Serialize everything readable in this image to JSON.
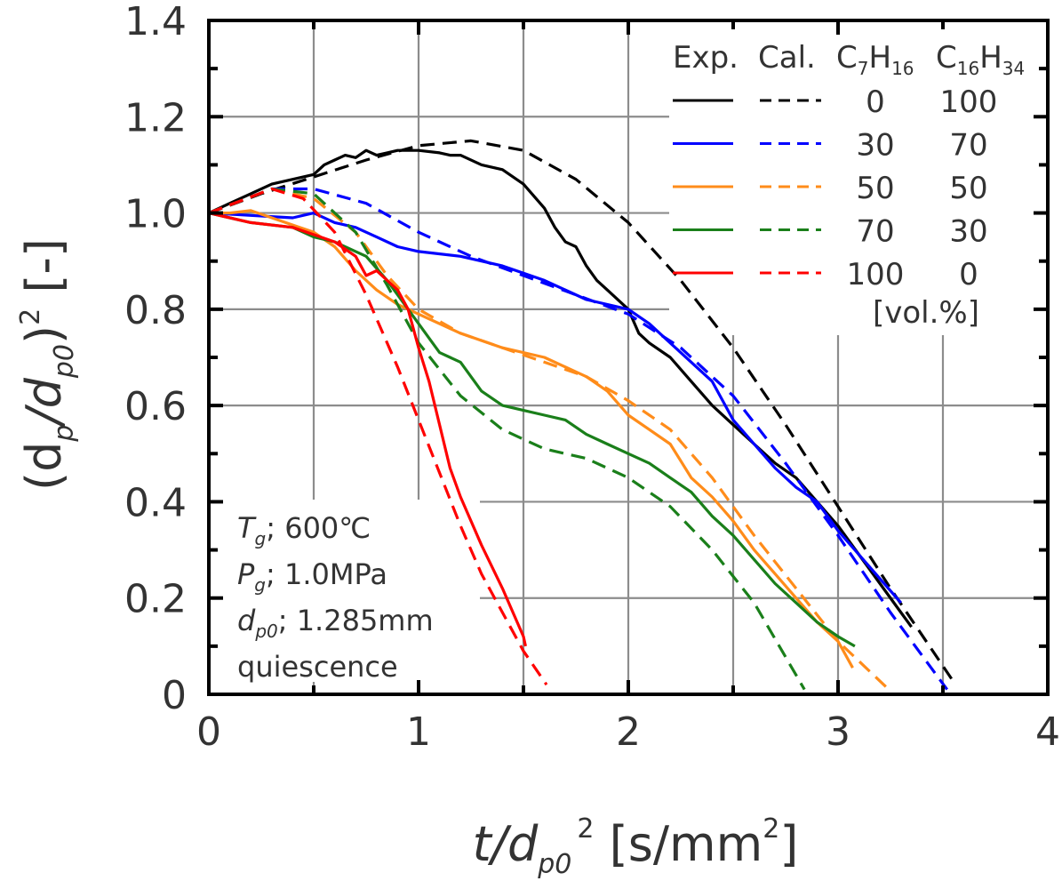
{
  "chart_data": {
    "type": "line",
    "title": "",
    "xlabel": "t/dp0^2 [s/mm^2]",
    "ylabel": "(dp/dp0)^2 [-]",
    "xlabel_parts": {
      "main": "t/d",
      "sub": "p0",
      "sup": "2",
      "unit_pre": " [s/mm",
      "unit_sup": "2",
      "unit_post": "]"
    },
    "ylabel_parts": {
      "open": "(d",
      "sub1": "p",
      "mid": "/d",
      "sub2": "p0",
      "close": ")",
      "sup": "2",
      "unit": " [-]"
    },
    "xlim": [
      0,
      4
    ],
    "ylim": [
      0,
      1.4
    ],
    "xticks": [
      0,
      1,
      2,
      3,
      4
    ],
    "xtick_labels": [
      "0",
      "1",
      "2",
      "3",
      "4"
    ],
    "yticks": [
      0,
      0.2,
      0.4,
      0.6,
      0.8,
      1.0,
      1.2,
      1.4
    ],
    "ytick_labels": [
      "0",
      "0.2",
      "0.4",
      "0.6",
      "0.8",
      "1.0",
      "1.2",
      "1.4"
    ],
    "grid": true,
    "grid_x_step": 0.5,
    "grid_y_step": 0.2,
    "legend_position": "top-right",
    "legend": {
      "headers": [
        "Exp.",
        "Cal.",
        "C7H16",
        "C16H34"
      ],
      "header_parts": {
        "c7": {
          "base": "C",
          "sub1": "7",
          "h": "H",
          "sub2": "16"
        },
        "c16": {
          "base": "C",
          "sub1": "16",
          "h": "H",
          "sub2": "34"
        }
      },
      "rows": [
        {
          "c7h16": "0",
          "c16h34": "100",
          "color": "#000000"
        },
        {
          "c7h16": "30",
          "c16h34": "70",
          "color": "#0000ff"
        },
        {
          "c7h16": "50",
          "c16h34": "50",
          "color": "#ff8c1a"
        },
        {
          "c7h16": "70",
          "c16h34": "30",
          "color": "#1a7f1a"
        },
        {
          "c7h16": "100",
          "c16h34": "0",
          "color": "#ff0000"
        }
      ],
      "unit": "[vol.%]"
    },
    "annotation": {
      "lines": [
        {
          "sym": "T",
          "sub": "g",
          "text": "; 600℃"
        },
        {
          "sym": "P",
          "sub": "g",
          "text": "; 1.0MPa"
        },
        {
          "sym": "d",
          "sub": "p0",
          "text": "; 1.285mm"
        },
        {
          "sym": "",
          "sub": "",
          "text": "quiescence"
        }
      ]
    },
    "series": [
      {
        "name": "Exp. C7H16 0 / C16H34 100",
        "kind": "exp",
        "color": "#000000",
        "x": [
          0,
          0.1,
          0.2,
          0.3,
          0.4,
          0.5,
          0.55,
          0.6,
          0.65,
          0.7,
          0.75,
          0.8,
          0.85,
          0.9,
          1.0,
          1.1,
          1.15,
          1.2,
          1.3,
          1.4,
          1.5,
          1.6,
          1.65,
          1.7,
          1.75,
          1.8,
          1.85,
          1.9,
          2.0,
          2.05,
          2.1,
          2.2,
          2.3,
          2.4,
          2.5,
          2.6,
          2.7,
          2.8,
          2.9,
          3.0,
          3.1,
          3.2,
          3.3,
          3.35
        ],
        "y": [
          1.0,
          1.02,
          1.04,
          1.06,
          1.07,
          1.08,
          1.1,
          1.11,
          1.12,
          1.115,
          1.13,
          1.12,
          1.125,
          1.13,
          1.13,
          1.125,
          1.12,
          1.12,
          1.1,
          1.09,
          1.06,
          1.01,
          0.97,
          0.94,
          0.93,
          0.89,
          0.86,
          0.84,
          0.8,
          0.75,
          0.73,
          0.7,
          0.65,
          0.6,
          0.56,
          0.52,
          0.48,
          0.45,
          0.4,
          0.35,
          0.29,
          0.23,
          0.17,
          0.14
        ]
      },
      {
        "name": "Cal. C7H16 0 / C16H34 100",
        "kind": "cal",
        "color": "#000000",
        "x": [
          0,
          0.25,
          0.5,
          0.75,
          1.0,
          1.25,
          1.5,
          1.75,
          2.0,
          2.25,
          2.5,
          2.75,
          3.0,
          3.25,
          3.56
        ],
        "y": [
          1.0,
          1.04,
          1.075,
          1.11,
          1.14,
          1.15,
          1.13,
          1.07,
          0.98,
          0.86,
          0.72,
          0.56,
          0.39,
          0.22,
          0.02
        ]
      },
      {
        "name": "Exp. C7H16 30 / C16H34 70",
        "kind": "exp",
        "color": "#0000ff",
        "x": [
          0,
          0.2,
          0.4,
          0.5,
          0.6,
          0.7,
          0.8,
          0.9,
          1.0,
          1.2,
          1.4,
          1.6,
          1.8,
          2.0,
          2.1,
          2.2,
          2.4,
          2.5,
          2.6,
          2.7,
          2.8,
          2.9,
          3.0,
          3.1,
          3.2,
          3.3
        ],
        "y": [
          1.0,
          0.995,
          0.99,
          1.0,
          0.98,
          0.97,
          0.95,
          0.93,
          0.92,
          0.91,
          0.89,
          0.86,
          0.82,
          0.8,
          0.77,
          0.73,
          0.65,
          0.57,
          0.52,
          0.47,
          0.43,
          0.4,
          0.34,
          0.29,
          0.24,
          0.19
        ]
      },
      {
        "name": "Cal. C7H16 30 / C16H34 70",
        "kind": "cal",
        "color": "#0000ff",
        "x": [
          0,
          0.3,
          0.5,
          0.75,
          1.0,
          1.25,
          1.5,
          1.75,
          2.0,
          2.25,
          2.5,
          2.75,
          3.0,
          3.25,
          3.52
        ],
        "y": [
          1.0,
          1.05,
          1.05,
          1.02,
          0.96,
          0.91,
          0.87,
          0.83,
          0.79,
          0.72,
          0.62,
          0.48,
          0.33,
          0.17,
          0.01
        ]
      },
      {
        "name": "Exp. C7H16 50 / C16H34 50",
        "kind": "exp",
        "color": "#ff8c1a",
        "x": [
          0,
          0.1,
          0.2,
          0.3,
          0.5,
          0.6,
          0.7,
          0.8,
          0.9,
          1.0,
          1.2,
          1.4,
          1.6,
          1.8,
          1.9,
          2.0,
          2.1,
          2.2,
          2.3,
          2.4,
          2.5,
          2.6,
          2.7,
          2.8,
          2.9,
          3.0,
          3.07
        ],
        "y": [
          1.0,
          1.0,
          1.005,
          0.99,
          0.96,
          0.93,
          0.88,
          0.84,
          0.81,
          0.79,
          0.75,
          0.72,
          0.7,
          0.66,
          0.63,
          0.58,
          0.55,
          0.52,
          0.45,
          0.41,
          0.36,
          0.3,
          0.25,
          0.2,
          0.15,
          0.11,
          0.055
        ]
      },
      {
        "name": "Cal. C7H16 50 / C16H34 50",
        "kind": "cal",
        "color": "#ff8c1a",
        "x": [
          0,
          0.3,
          0.5,
          0.7,
          0.85,
          1.0,
          1.2,
          1.4,
          1.6,
          1.8,
          2.0,
          2.2,
          2.4,
          2.6,
          2.8,
          3.0,
          3.23
        ],
        "y": [
          1.0,
          1.05,
          1.03,
          0.96,
          0.87,
          0.8,
          0.75,
          0.72,
          0.69,
          0.66,
          0.61,
          0.55,
          0.45,
          0.33,
          0.22,
          0.11,
          0.015
        ]
      },
      {
        "name": "Exp. C7H16 70 / C16H34 30",
        "kind": "exp",
        "color": "#1a7f1a",
        "x": [
          0,
          0.2,
          0.4,
          0.5,
          0.6,
          0.7,
          0.75,
          0.85,
          1.0,
          1.1,
          1.2,
          1.3,
          1.4,
          1.5,
          1.6,
          1.7,
          1.8,
          1.9,
          2.0,
          2.1,
          2.2,
          2.3,
          2.4,
          2.5,
          2.6,
          2.7,
          2.8,
          2.9,
          3.0,
          3.08
        ],
        "y": [
          1.0,
          0.98,
          0.97,
          0.95,
          0.94,
          0.92,
          0.91,
          0.86,
          0.77,
          0.71,
          0.69,
          0.63,
          0.6,
          0.59,
          0.58,
          0.57,
          0.54,
          0.52,
          0.5,
          0.48,
          0.45,
          0.42,
          0.37,
          0.33,
          0.28,
          0.23,
          0.19,
          0.15,
          0.12,
          0.1
        ]
      },
      {
        "name": "Cal. C7H16 70 / C16H34 30",
        "kind": "cal",
        "color": "#1a7f1a",
        "x": [
          0,
          0.3,
          0.5,
          0.7,
          0.85,
          1.0,
          1.2,
          1.4,
          1.6,
          1.8,
          2.0,
          2.2,
          2.4,
          2.6,
          2.84
        ],
        "y": [
          1.0,
          1.05,
          1.04,
          0.96,
          0.85,
          0.73,
          0.62,
          0.55,
          0.51,
          0.49,
          0.45,
          0.39,
          0.3,
          0.19,
          0.01
        ]
      },
      {
        "name": "Exp. C7H16 100 / C16H34 0",
        "kind": "exp",
        "color": "#ff0000",
        "x": [
          0,
          0.2,
          0.4,
          0.5,
          0.6,
          0.7,
          0.75,
          0.8,
          0.9,
          0.95,
          1.0,
          1.05,
          1.1,
          1.15,
          1.2,
          1.3,
          1.4,
          1.5,
          1.51
        ],
        "y": [
          1.0,
          0.98,
          0.97,
          0.955,
          0.94,
          0.91,
          0.87,
          0.88,
          0.84,
          0.8,
          0.72,
          0.65,
          0.56,
          0.47,
          0.41,
          0.31,
          0.22,
          0.12,
          0.1
        ]
      },
      {
        "name": "Cal. C7H16 100 / C16H34 0",
        "kind": "cal",
        "color": "#ff0000",
        "x": [
          0,
          0.3,
          0.45,
          0.6,
          0.75,
          0.9,
          1.0,
          1.1,
          1.2,
          1.3,
          1.4,
          1.5,
          1.61
        ],
        "y": [
          1.0,
          1.05,
          1.03,
          0.96,
          0.83,
          0.68,
          0.57,
          0.46,
          0.35,
          0.25,
          0.17,
          0.09,
          0.02
        ]
      }
    ]
  }
}
